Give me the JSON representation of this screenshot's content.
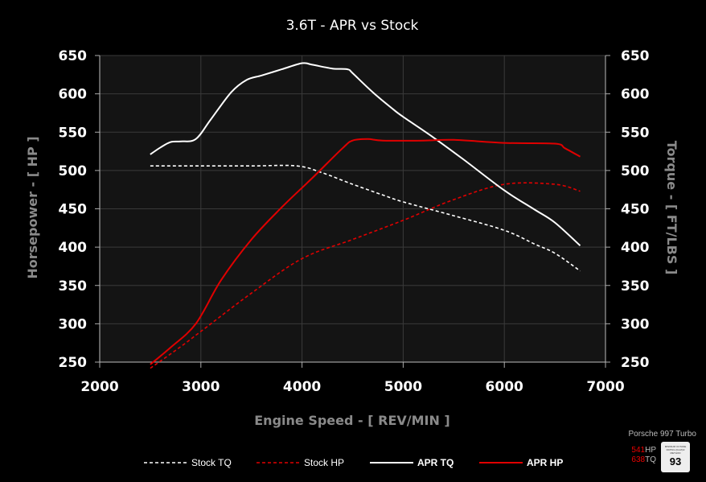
{
  "chart_data": {
    "type": "line",
    "title": "3.6T - APR vs Stock",
    "xlabel": "Engine Speed - [ REV/MIN ]",
    "ylabel_left": "Horsepower - [ HP ]",
    "ylabel_right": "Torque - [ FT/LBS ]",
    "xlim": [
      2000,
      7000
    ],
    "ylim": [
      250,
      650
    ],
    "x_ticks": [
      "2000",
      "3000",
      "4000",
      "5000",
      "6000",
      "7000"
    ],
    "y_ticks": [
      "650",
      "600",
      "550",
      "500",
      "450",
      "400",
      "350",
      "300",
      "250"
    ],
    "grid": true,
    "legend_position": "bottom",
    "series": [
      {
        "name": "Stock TQ",
        "color": "#ffffff",
        "style": "dashed",
        "points": [
          [
            2500,
            506
          ],
          [
            3000,
            506
          ],
          [
            3500,
            506
          ],
          [
            3950,
            506
          ],
          [
            4200,
            497
          ],
          [
            4500,
            482
          ],
          [
            4800,
            468
          ],
          [
            5000,
            459
          ],
          [
            5500,
            441
          ],
          [
            6000,
            422
          ],
          [
            6300,
            404
          ],
          [
            6500,
            392
          ],
          [
            6750,
            369
          ]
        ]
      },
      {
        "name": "Stock HP",
        "color": "#e00000",
        "style": "dashed",
        "points": [
          [
            2500,
            242
          ],
          [
            2800,
            270
          ],
          [
            3000,
            290
          ],
          [
            3500,
            340
          ],
          [
            4000,
            385
          ],
          [
            4500,
            410
          ],
          [
            5000,
            435
          ],
          [
            5500,
            462
          ],
          [
            6000,
            482
          ],
          [
            6500,
            482
          ],
          [
            6750,
            473
          ]
        ]
      },
      {
        "name": "APR TQ",
        "color": "#ffffff",
        "style": "solid",
        "points": [
          [
            2500,
            521
          ],
          [
            2600,
            530
          ],
          [
            2700,
            537
          ],
          [
            2800,
            538
          ],
          [
            2950,
            541
          ],
          [
            3100,
            567
          ],
          [
            3300,
            602
          ],
          [
            3450,
            618
          ],
          [
            3600,
            624
          ],
          [
            3800,
            632
          ],
          [
            4000,
            640
          ],
          [
            4100,
            638
          ],
          [
            4300,
            633
          ],
          [
            4450,
            632
          ],
          [
            4500,
            627
          ],
          [
            4700,
            602
          ],
          [
            4900,
            580
          ],
          [
            5000,
            570
          ],
          [
            5300,
            543
          ],
          [
            5600,
            514
          ],
          [
            6000,
            474
          ],
          [
            6300,
            449
          ],
          [
            6500,
            432
          ],
          [
            6750,
            402
          ]
        ]
      },
      {
        "name": "APR HP",
        "color": "#e00000",
        "style": "solid",
        "points": [
          [
            2500,
            247
          ],
          [
            2700,
            269
          ],
          [
            2950,
            300
          ],
          [
            3200,
            357
          ],
          [
            3500,
            410
          ],
          [
            3800,
            452
          ],
          [
            4100,
            490
          ],
          [
            4400,
            529
          ],
          [
            4500,
            539
          ],
          [
            4650,
            541
          ],
          [
            4800,
            539
          ],
          [
            5200,
            539
          ],
          [
            5500,
            540
          ],
          [
            6000,
            536
          ],
          [
            6500,
            535
          ],
          [
            6600,
            529
          ],
          [
            6750,
            518
          ]
        ]
      }
    ]
  },
  "badge": {
    "car": "Porsche 997 Turbo",
    "hp_value": "541",
    "hp_unit": "HP",
    "tq_value": "638",
    "tq_unit": "TQ",
    "octane_text": "MINIMUM OCTANE RATING (R+M)/2 METHOD",
    "octane": "93"
  }
}
